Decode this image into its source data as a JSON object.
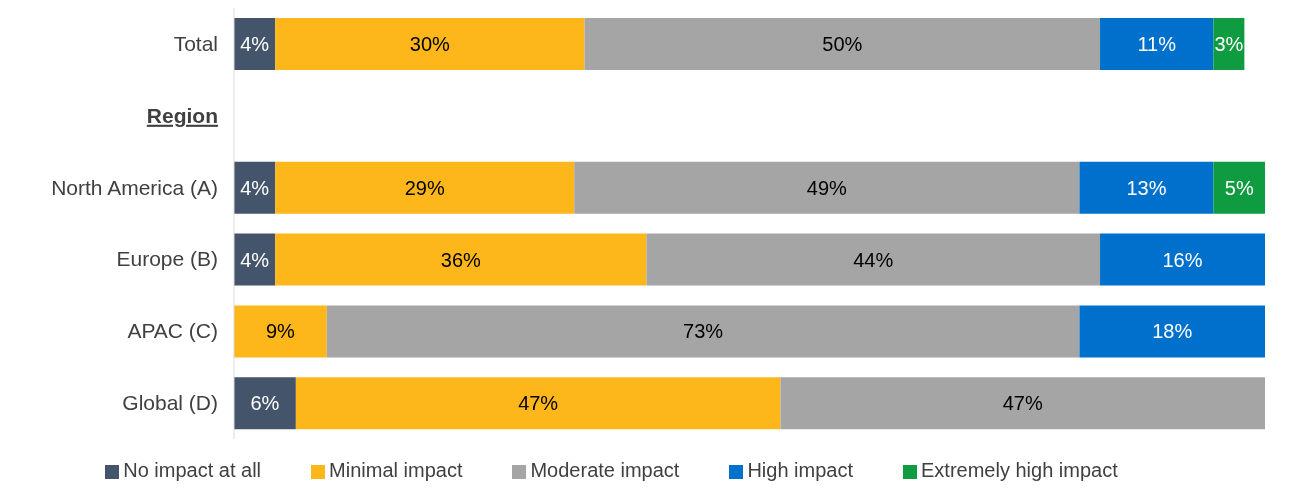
{
  "chart_data": {
    "type": "bar",
    "orientation": "horizontal",
    "stacked": true,
    "legend": "bottom",
    "categories": [
      "Total",
      "Region",
      "North America (A)",
      "Europe (B)",
      "APAC (C)",
      "Global (D)"
    ],
    "series": [
      {
        "name": "No impact at all",
        "color": "#44546a",
        "values": [
          4,
          null,
          4,
          4,
          null,
          6
        ],
        "value_labels": [
          "4%",
          null,
          "4%",
          "4%",
          null,
          "6%"
        ]
      },
      {
        "name": "Minimal impact",
        "color": "#fdb71a",
        "values": [
          30,
          null,
          29,
          36,
          9,
          47
        ],
        "value_labels": [
          "30%",
          null,
          "29%",
          "36%",
          "9%",
          "47%"
        ]
      },
      {
        "name": "Moderate impact",
        "color": "#a5a5a5",
        "values": [
          50,
          null,
          49,
          44,
          73,
          47
        ],
        "value_labels": [
          "50%",
          null,
          "49%",
          "44%",
          "73%",
          "47%"
        ]
      },
      {
        "name": "High impact",
        "color": "#0070cd",
        "values": [
          11,
          null,
          13,
          16,
          18,
          null
        ],
        "value_labels": [
          "11%",
          null,
          "13%",
          "16%",
          "18%",
          null
        ]
      },
      {
        "name": "Extremely high impact",
        "color": "#0f9b3f",
        "values": [
          3,
          null,
          5,
          null,
          null,
          null
        ],
        "value_labels": [
          "3%",
          null,
          "5%",
          null,
          null,
          null
        ]
      }
    ]
  }
}
